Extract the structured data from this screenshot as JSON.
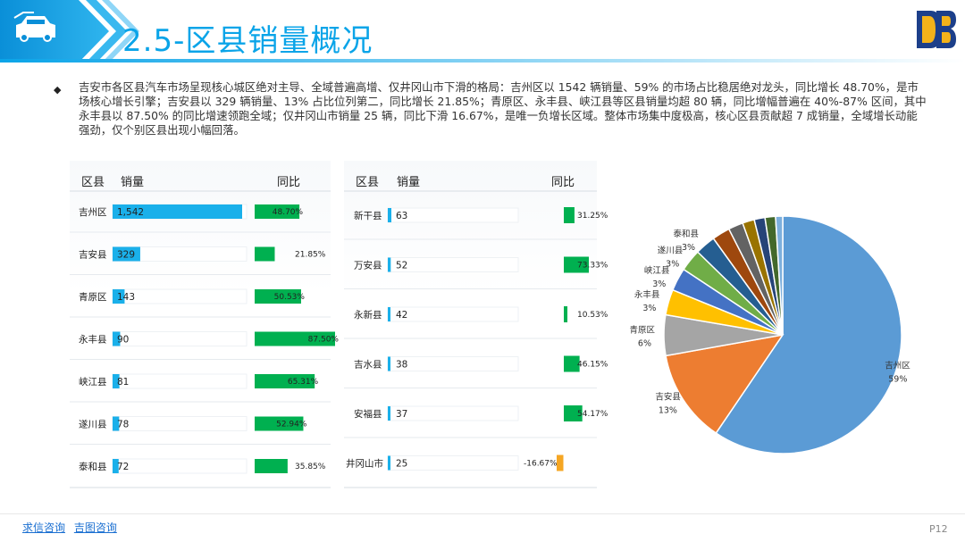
{
  "header": {
    "title": "2.5-区县销量概况",
    "icon": "car-icon",
    "logo": "db-logo"
  },
  "paragraph": "吉安市各区县汽车市场呈现核心城区绝对主导、全域普遍高增、仅井冈山市下滑的格局：吉州区以 1542 辆销量、59% 的市场占比稳居绝对龙头，同比增长 48.70%，是市场核心增长引擎；吉安县以 329 辆销量、13% 占比位列第二，同比增长 21.85%；青原区、永丰县、峡江县等区县销量均超 80 辆，同比增幅普遍在 40%-87% 区间，其中永丰县以 87.50% 的同比增速领跑全域；仅井冈山市销量 25 辆，同比下滑 16.67%，是唯一负增长区域。整体市场集中度极高，核心区县贡献超 7 成销量，全域增长动能强劲，仅个别区县出现小幅回落。",
  "columns": {
    "county": "区县",
    "sales": "销量",
    "yoy": "同比"
  },
  "chart_data": [
    {
      "type": "bar",
      "categories": [
        "吉州区",
        "吉安县",
        "青原区",
        "永丰县",
        "峡江县",
        "遂川县",
        "泰和县"
      ],
      "series": [
        {
          "name": "销量",
          "values": [
            1542,
            329,
            143,
            90,
            81,
            78,
            72
          ],
          "labels": [
            "1,542",
            "329",
            "143",
            "90",
            "81",
            "78",
            "72"
          ]
        },
        {
          "name": "同比",
          "values": [
            48.7,
            21.85,
            50.53,
            87.5,
            65.31,
            52.94,
            35.85
          ],
          "labels": [
            "48.70%",
            "21.85%",
            "50.53%",
            "87.50%",
            "65.31%",
            "52.94%",
            "35.85%"
          ]
        }
      ]
    },
    {
      "type": "bar",
      "categories": [
        "新干县",
        "万安县",
        "永新县",
        "吉水县",
        "安福县",
        "井冈山市"
      ],
      "series": [
        {
          "name": "销量",
          "values": [
            63,
            52,
            42,
            38,
            37,
            25
          ],
          "labels": [
            "63",
            "52",
            "42",
            "38",
            "37",
            "25"
          ]
        },
        {
          "name": "同比",
          "values": [
            31.25,
            73.33,
            10.53,
            46.15,
            54.17,
            -16.67
          ],
          "labels": [
            "31.25%",
            "73.33%",
            "10.53%",
            "46.15%",
            "54.17%",
            "-16.67%"
          ]
        }
      ]
    },
    {
      "type": "pie",
      "slices": [
        {
          "name": "吉州区",
          "value": 1542,
          "pct": "59%"
        },
        {
          "name": "吉安县",
          "value": 329,
          "pct": "13%"
        },
        {
          "name": "青原区",
          "value": 143,
          "pct": "6%"
        },
        {
          "name": "永丰县",
          "value": 90,
          "pct": "3%"
        },
        {
          "name": "峡江县",
          "value": 81,
          "pct": "3%"
        },
        {
          "name": "遂川县",
          "value": 78,
          "pct": "3%"
        },
        {
          "name": "泰和县",
          "value": 72,
          "pct": "3%"
        },
        {
          "name": "",
          "value": 63
        },
        {
          "name": "",
          "value": 52
        },
        {
          "name": "",
          "value": 42
        },
        {
          "name": "",
          "value": 38
        },
        {
          "name": "",
          "value": 37
        },
        {
          "name": "",
          "value": 25
        }
      ],
      "colors": [
        "#5b9bd5",
        "#ed7d31",
        "#a5a5a5",
        "#ffc000",
        "#4472c4",
        "#70ad47",
        "#255e91",
        "#9e480e",
        "#636363",
        "#997300",
        "#264478",
        "#43682b",
        "#7cafdd"
      ]
    }
  ],
  "colors": {
    "sales_bar": "#1ab0ea",
    "yoy_positive": "#00b050",
    "yoy_negative": "#f5a623",
    "accent": "#0aa4e8"
  },
  "footer": {
    "link1": "求信咨询",
    "link2": "吉图咨询",
    "page": "P12"
  }
}
